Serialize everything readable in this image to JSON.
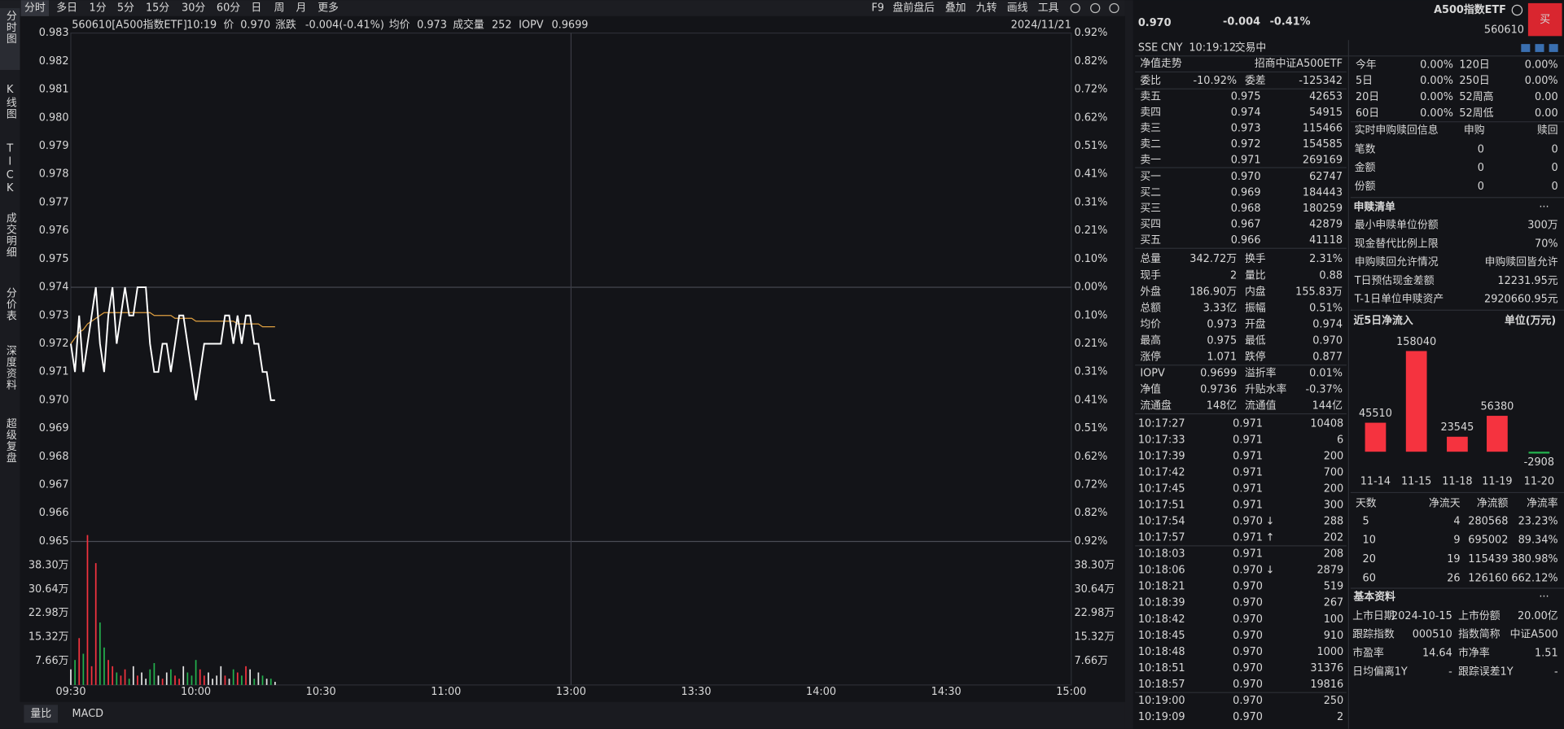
{
  "toolbar": {
    "left": [
      "分时",
      "多日",
      "1分",
      "5分",
      "15分",
      "30分",
      "60分",
      "日",
      "周",
      "月",
      "更多"
    ],
    "right": [
      "F9",
      "盘前盘后",
      "叠加",
      "九转",
      "画线",
      "工具"
    ]
  },
  "sidebar": [
    "分时图",
    "K线图",
    "TICK",
    "成交明细",
    "分价表",
    "深度资料",
    "超级复盘"
  ],
  "quote_bar": {
    "code": "560610[A500指数ETF]",
    "time": "10:19",
    "price_label": "价",
    "price": "0.970",
    "change_label": "涨跌",
    "change": "-0.004(-0.41%)",
    "avg_label": "均价",
    "avg": "0.973",
    "vol_label": "成交量",
    "vol": "252",
    "iopv_label": "IOPV",
    "iopv": "0.9699",
    "date": "2024/11/21"
  },
  "intraday": {
    "type": "line",
    "ylim": [
      0.965,
      0.983
    ],
    "price_ticks": [
      0.983,
      0.982,
      0.981,
      {
        "value": 0.98,
        "label": "0.980"
      },
      0.979,
      0.978,
      0.977,
      0.976,
      0.975,
      0.974,
      0.973,
      0.972,
      0.971,
      {
        "value": 0.97,
        "label": "0.970"
      },
      0.969,
      0.968,
      0.967,
      0.966,
      0.965
    ],
    "pct_ticks": [
      "0.92%",
      "0.82%",
      "0.72%",
      "0.62%",
      "0.51%",
      "0.41%",
      "0.31%",
      "0.21%",
      "0.10%",
      "0.00%",
      "0.10%",
      "0.21%",
      "0.31%",
      "0.41%",
      "0.51%",
      "0.62%",
      "0.72%",
      "0.82%",
      "0.92%"
    ],
    "vol_lim": [
      0,
      45.96
    ],
    "vol_ticks": [
      {
        "value": 38.3,
        "label": "38.30万"
      },
      {
        "value": 30.64,
        "label": "30.64万"
      },
      {
        "value": 22.98,
        "label": "22.98万"
      },
      {
        "value": 15.32,
        "label": "15.32万"
      },
      {
        "value": 7.66,
        "label": "7.66万"
      }
    ],
    "xlim": [
      0,
      240
    ],
    "time_ticks": [
      {
        "value": 0,
        "label": "09:30"
      },
      {
        "value": 30,
        "label": "10:00"
      },
      {
        "value": 60,
        "label": "10:30"
      },
      {
        "value": 90,
        "label": "11:00"
      },
      {
        "value": 120,
        "label": "13:00"
      },
      {
        "value": 150,
        "label": "13:30"
      },
      {
        "value": 180,
        "label": "14:00"
      },
      {
        "value": 210,
        "label": "14:30"
      },
      {
        "value": 240,
        "label": "15:00"
      }
    ],
    "price": [
      0.972,
      0.971,
      0.973,
      0.971,
      0.972,
      0.973,
      0.974,
      0.972,
      0.971,
      0.973,
      0.974,
      0.972,
      0.973,
      0.974,
      0.973,
      0.973,
      0.974,
      0.974,
      0.974,
      0.972,
      0.971,
      0.971,
      0.972,
      0.972,
      0.971,
      0.972,
      0.973,
      0.973,
      0.972,
      0.971,
      0.97,
      0.971,
      0.972,
      0.972,
      0.972,
      0.972,
      0.972,
      0.973,
      0.973,
      0.972,
      0.973,
      0.972,
      0.973,
      0.973,
      0.972,
      0.972,
      0.971,
      0.971,
      0.97,
      0.97
    ],
    "avg": [
      0.972,
      0.9722,
      0.9724,
      0.9725,
      0.9727,
      0.9728,
      0.9729,
      0.973,
      0.9731,
      0.9731,
      0.9731,
      0.9731,
      0.9731,
      0.9731,
      0.9731,
      0.9731,
      0.9731,
      0.9731,
      0.9731,
      0.9731,
      0.973,
      0.973,
      0.973,
      0.973,
      0.973,
      0.9729,
      0.9729,
      0.9729,
      0.9729,
      0.9729,
      0.9728,
      0.9728,
      0.9728,
      0.9728,
      0.9728,
      0.9728,
      0.9728,
      0.9728,
      0.9728,
      0.9728,
      0.9727,
      0.9727,
      0.9727,
      0.9727,
      0.9727,
      0.9727,
      0.9726,
      0.9726,
      0.9726,
      0.9726
    ],
    "volume": [
      5,
      8,
      15,
      10,
      48,
      6,
      39,
      20,
      12,
      8,
      6,
      4,
      3,
      5,
      2,
      6,
      3,
      4,
      2,
      5,
      7,
      3,
      2,
      4,
      5,
      3,
      2,
      6,
      4,
      3,
      8,
      5,
      3,
      4,
      2,
      3,
      6,
      3,
      2,
      5,
      4,
      3,
      6,
      5,
      2,
      4,
      3,
      2,
      2,
      1
    ],
    "price_color": "#ffffff",
    "avg_color": "#e0a040"
  },
  "bottom_tabs": [
    "量比",
    "MACD"
  ],
  "header": {
    "price": "0.970",
    "change": "-0.004",
    "change_pct": "-0.41%",
    "name": "A500指数ETF",
    "code": "560610",
    "buy": "买",
    "exchange": "SSE",
    "currency": "CNY",
    "time": "10:19:12",
    "status": "交易中"
  },
  "nav": {
    "label": "净值走势",
    "fund": "招商中证A500ETF"
  },
  "order_ratio": {
    "l1": "委比",
    "v1": "-10.92%",
    "l2": "委差",
    "v2": "-125342",
    "color": "green"
  },
  "order_book": [
    {
      "label": "卖五",
      "price": "0.975",
      "vol": "42653",
      "color": "red"
    },
    {
      "label": "卖四",
      "price": "0.974",
      "vol": "54915",
      "color": "white"
    },
    {
      "label": "卖三",
      "price": "0.973",
      "vol": "115466",
      "color": "green"
    },
    {
      "label": "卖二",
      "price": "0.972",
      "vol": "154585",
      "color": "green"
    },
    {
      "label": "卖一",
      "price": "0.971",
      "vol": "269169",
      "color": "green"
    },
    {
      "label": "买一",
      "price": "0.970",
      "vol": "62747",
      "color": "green"
    },
    {
      "label": "买二",
      "price": "0.969",
      "vol": "184443",
      "color": "green"
    },
    {
      "label": "买三",
      "price": "0.968",
      "vol": "180259",
      "color": "green"
    },
    {
      "label": "买四",
      "price": "0.967",
      "vol": "42879",
      "color": "green"
    },
    {
      "label": "买五",
      "price": "0.966",
      "vol": "41118",
      "color": "green"
    }
  ],
  "stats": [
    {
      "l1": "总量",
      "v1": "342.72万",
      "c1": "white",
      "l2": "换手",
      "v2": "2.31%",
      "c2": "white"
    },
    {
      "l1": "现手",
      "v1": "2",
      "c1": "white",
      "l2": "量比",
      "v2": "0.88",
      "c2": "white"
    },
    {
      "l1": "外盘",
      "v1": "186.90万",
      "c1": "red",
      "l2": "内盘",
      "v2": "155.83万",
      "c2": "green"
    },
    {
      "l1": "总额",
      "v1": "3.33亿",
      "c1": "white",
      "l2": "振幅",
      "v2": "0.51%",
      "c2": "white"
    },
    {
      "l1": "均价",
      "v1": "0.973",
      "c1": "green",
      "l2": "开盘",
      "v2": "0.974",
      "c2": "white"
    },
    {
      "l1": "最高",
      "v1": "0.975",
      "c1": "red",
      "l2": "最低",
      "v2": "0.970",
      "c2": "green"
    },
    {
      "l1": "涨停",
      "v1": "1.071",
      "c1": "red",
      "l2": "跌停",
      "v2": "0.877",
      "c2": "green"
    },
    {
      "l1": "IOPV",
      "v1": "0.9699",
      "c1": "white",
      "l2": "溢折率",
      "v2": "0.01%",
      "c2": "red"
    },
    {
      "l1": "净值",
      "v1": "0.9736",
      "c1": "red",
      "l2": "升贴水率",
      "v2": "-0.37%",
      "c2": "green"
    },
    {
      "l1": "流通盘",
      "v1": "148亿",
      "c1": "white",
      "l2": "流通值",
      "v2": "144亿",
      "c2": "white"
    }
  ],
  "trades": [
    {
      "time": "10:17:27",
      "price": "0.971",
      "vol": "10408",
      "color": "green"
    },
    {
      "time": "10:17:33",
      "price": "0.971",
      "vol": "6",
      "color": "red"
    },
    {
      "time": "10:17:39",
      "price": "0.971",
      "vol": "200",
      "color": "red"
    },
    {
      "time": "10:17:42",
      "price": "0.971",
      "vol": "700",
      "color": "red"
    },
    {
      "time": "10:17:45",
      "price": "0.971",
      "vol": "200",
      "color": "red"
    },
    {
      "time": "10:17:51",
      "price": "0.971",
      "vol": "300",
      "color": "red"
    },
    {
      "time": "10:17:54",
      "price": "0.970",
      "arrow": "↓",
      "vol": "288",
      "color": "green"
    },
    {
      "time": "10:17:57",
      "price": "0.971",
      "arrow": "↑",
      "vol": "202",
      "color": "red"
    },
    {
      "time": "10:18:03",
      "price": "0.971",
      "vol": "208",
      "color": "red"
    },
    {
      "time": "10:18:06",
      "price": "0.970",
      "arrow": "↓",
      "vol": "2879",
      "color": "green"
    },
    {
      "time": "10:18:21",
      "price": "0.970",
      "vol": "519",
      "color": "green"
    },
    {
      "time": "10:18:39",
      "price": "0.970",
      "vol": "267",
      "color": "green"
    },
    {
      "time": "10:18:42",
      "price": "0.970",
      "vol": "100",
      "color": "green"
    },
    {
      "time": "10:18:45",
      "price": "0.970",
      "vol": "910",
      "color": "green"
    },
    {
      "time": "10:18:48",
      "price": "0.970",
      "vol": "1000",
      "color": "green"
    },
    {
      "time": "10:18:51",
      "price": "0.970",
      "vol": "31376",
      "color": "green"
    },
    {
      "time": "10:18:57",
      "price": "0.970",
      "vol": "19816",
      "color": "green"
    },
    {
      "time": "10:19:00",
      "price": "0.970",
      "vol": "250",
      "color": "green"
    },
    {
      "time": "10:19:09",
      "price": "0.970",
      "vol": "2",
      "color": "green"
    }
  ],
  "returns": [
    {
      "l1": "今年",
      "v1": "0.00%",
      "l2": "120日",
      "v2": "0.00%"
    },
    {
      "l1": "5日",
      "v1": "0.00%",
      "l2": "250日",
      "v2": "0.00%"
    },
    {
      "l1": "20日",
      "v1": "0.00%",
      "l2": "52周高",
      "v2": "0.00"
    },
    {
      "l1": "60日",
      "v1": "0.00%",
      "l2": "52周低",
      "v2": "0.00"
    }
  ],
  "redemption": {
    "title": "实时申购赎回信息",
    "cols": [
      "申购",
      "赎回"
    ],
    "rows": [
      {
        "label": "笔数",
        "v": [
          "0",
          "0"
        ]
      },
      {
        "label": "金额",
        "v": [
          "0",
          "0"
        ]
      },
      {
        "label": "份额",
        "v": [
          "0",
          "0"
        ]
      }
    ]
  },
  "creation_list": {
    "title": "申赎清单",
    "more": "···",
    "rows": [
      {
        "label": "最小申赎单位份额",
        "value": "300万"
      },
      {
        "label": "现金替代比例上限",
        "value": "70%"
      },
      {
        "label": "申购赎回允许情况",
        "value": "申购赎回皆允许"
      },
      {
        "label": "T日预估现金差额",
        "value": "12231.95元"
      },
      {
        "label": "T-1日单位申赎资产",
        "value": "2920660.95元"
      }
    ]
  },
  "chart_data": {
    "type": "bar",
    "title": "近5日净流入",
    "unit": "单位(万元)",
    "categories": [
      "11-14",
      "11-15",
      "11-18",
      "11-19",
      "11-20"
    ],
    "values": [
      45510,
      158040,
      23545,
      56380,
      -2908
    ],
    "ylim": [
      -20000,
      158040
    ],
    "color": "#f5333f",
    "negative_color": "#23b14d"
  },
  "flow_table": {
    "header": [
      "天数",
      "净流天",
      "净流额",
      "净流率"
    ],
    "rows": [
      [
        "5",
        "4",
        "280568",
        "23.23%"
      ],
      [
        "10",
        "9",
        "695002",
        "89.34%"
      ],
      [
        "20",
        "19",
        "115439",
        "380.98%"
      ],
      [
        "60",
        "26",
        "126160",
        "662.12%"
      ]
    ]
  },
  "basic": {
    "title": "基本资料",
    "more": "···",
    "rows": [
      {
        "l1": "上市日期",
        "v1": "2024-10-15",
        "l2": "上市份额",
        "v2": "20.00亿"
      },
      {
        "l1": "跟踪指数",
        "v1": "000510",
        "l2": "指数简称",
        "v2": "中证A500"
      },
      {
        "l1": "市盈率",
        "v1": "14.64",
        "l2": "市净率",
        "v2": "1.51"
      },
      {
        "l1": "日均偏离1Y",
        "v1": "-",
        "l2": "跟踪误差1Y",
        "v2": "-"
      }
    ]
  }
}
